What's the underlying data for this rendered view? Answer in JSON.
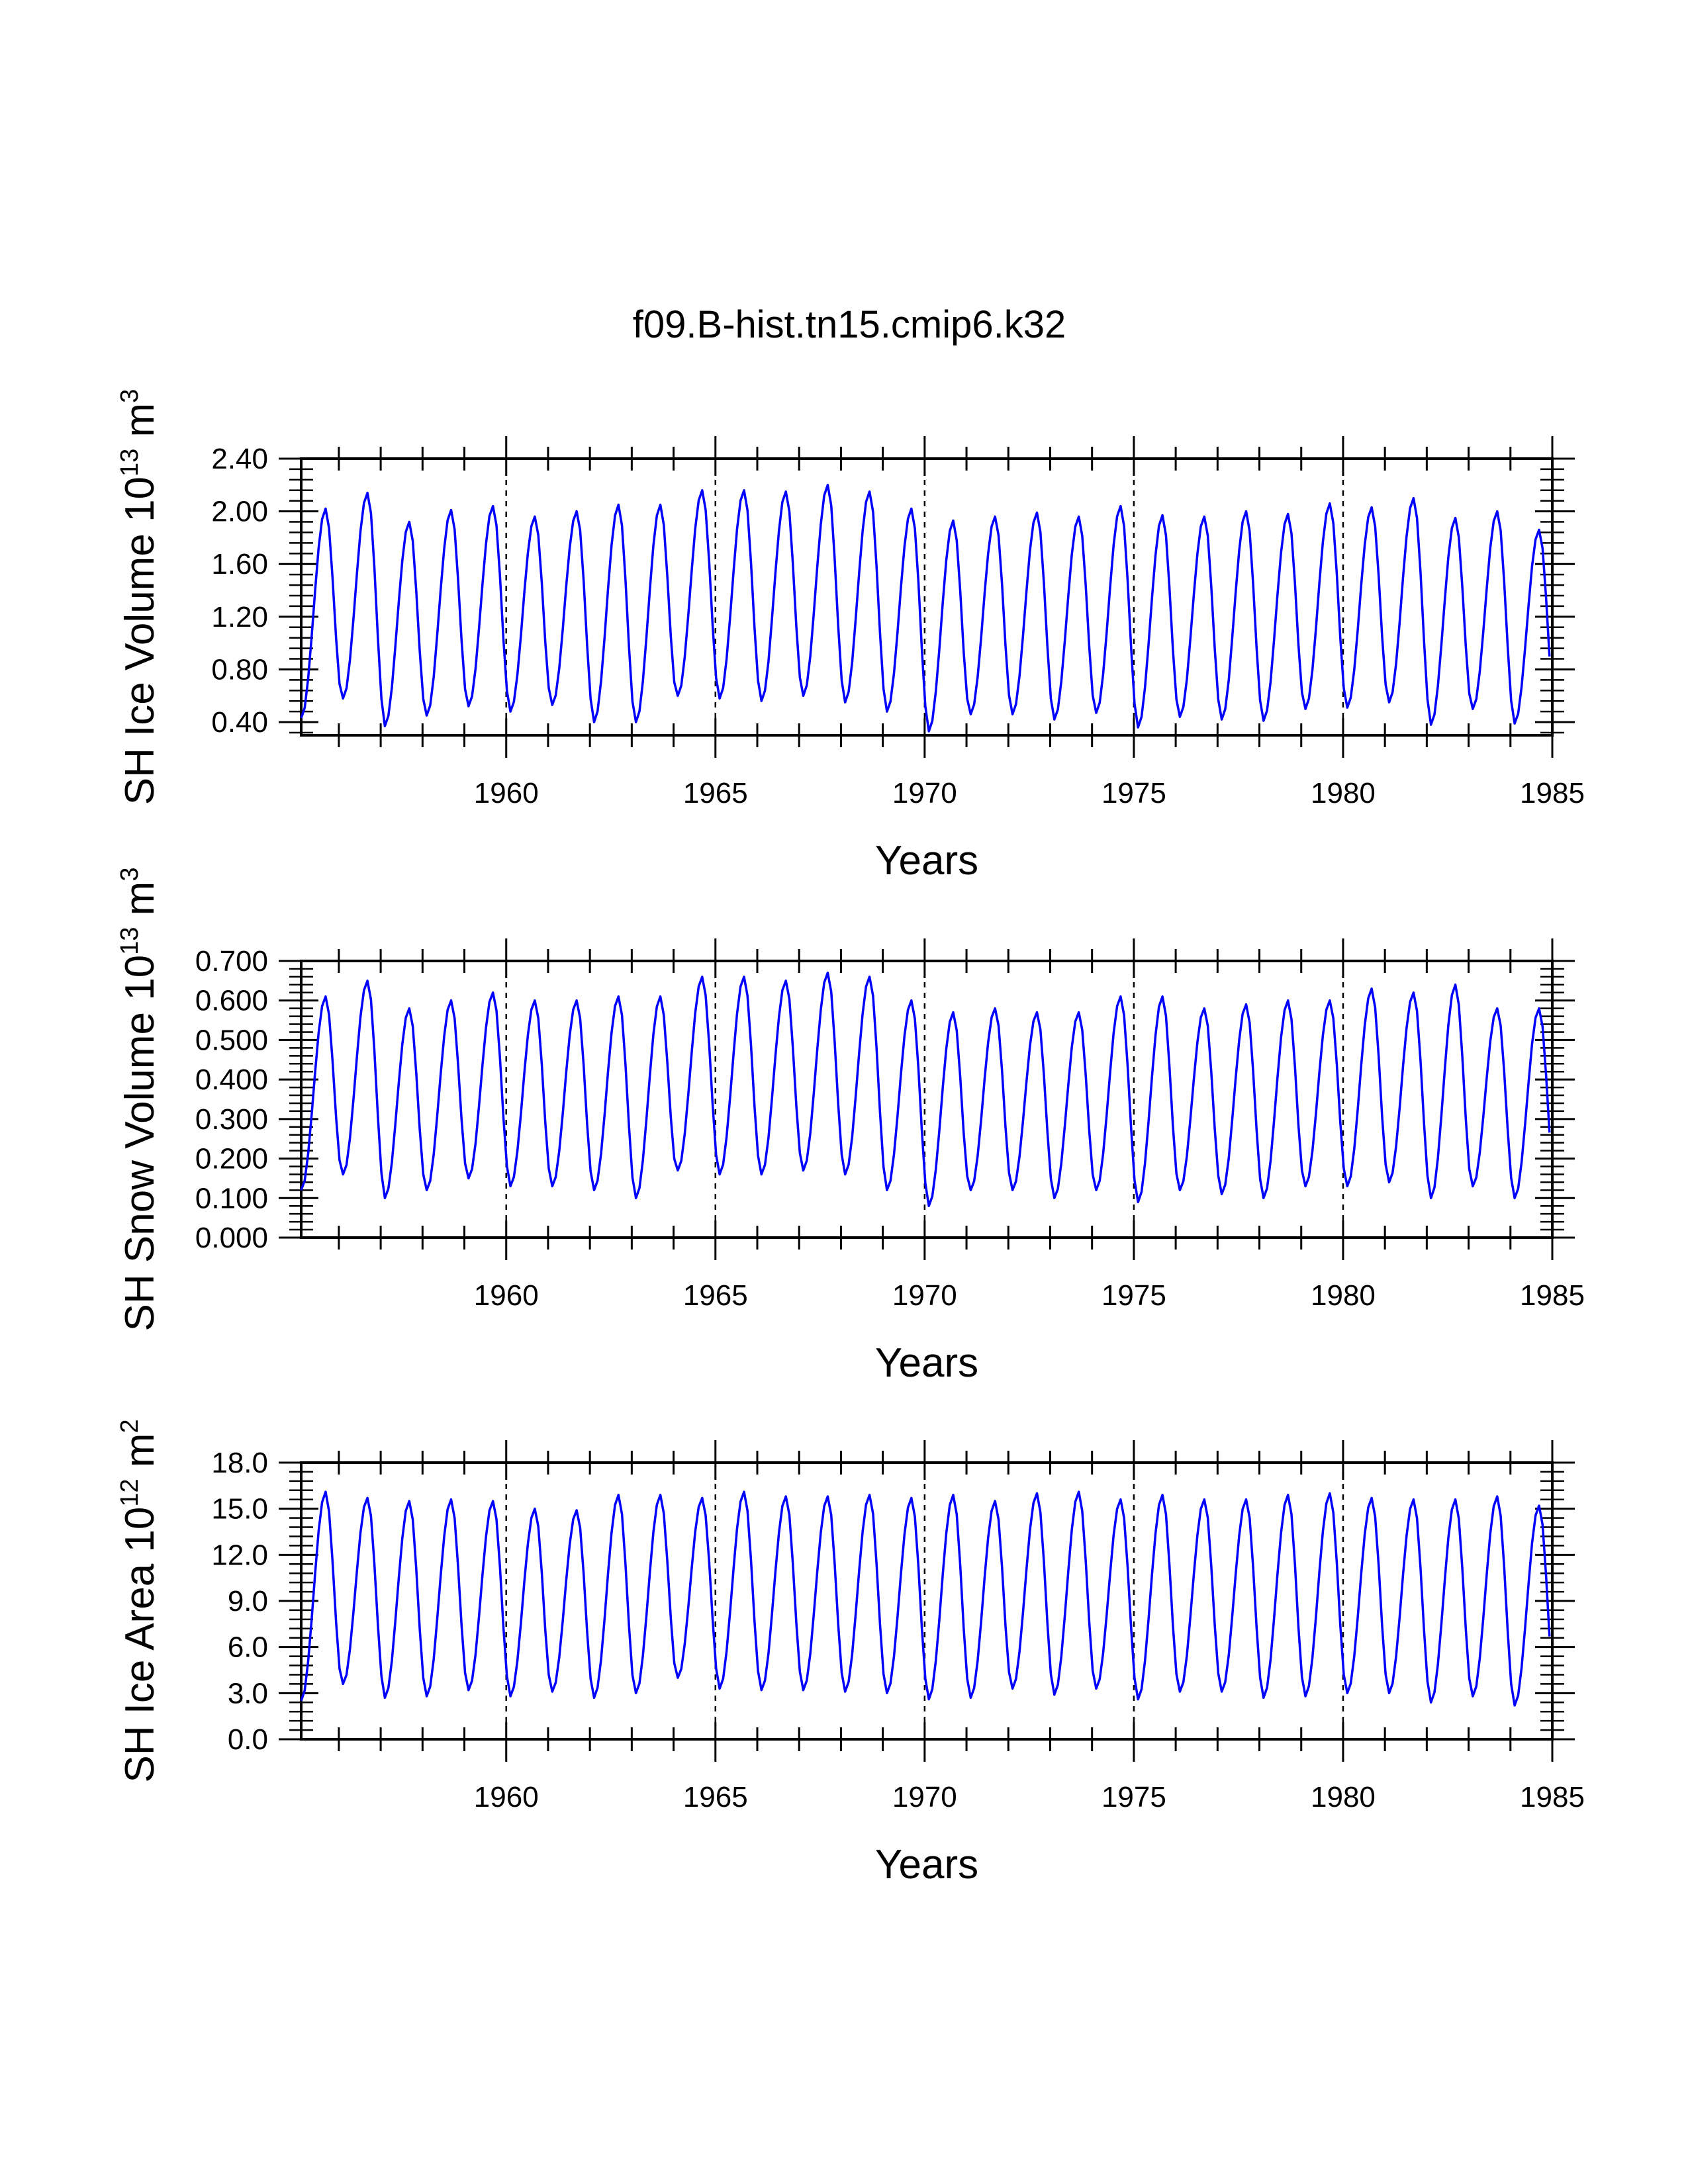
{
  "title": "f09.B-hist.tn15.cmip6.k32",
  "colors": {
    "series": "#0000ff",
    "axis": "#000000",
    "reference_lines": "#000000"
  },
  "chart_data": [
    {
      "type": "line",
      "name": "sh-ice-volume",
      "ylabel": {
        "text": "SH Ice Volume 10",
        "exp": "13",
        "unit": " m",
        "unit_exp": "3"
      },
      "xlabel": "Years",
      "xlim": [
        1955.1,
        1985.0
      ],
      "ylim": [
        0.3,
        2.4
      ],
      "x_ticks": [
        "1960",
        "1965",
        "1970",
        "1975",
        "1980",
        "1985"
      ],
      "y_ticks": [
        "0.40",
        "0.80",
        "1.20",
        "1.60",
        "2.00",
        "2.40"
      ],
      "x_start": 1955.1,
      "months_per_year": 12,
      "reference_lines": [
        1960,
        1965,
        1970,
        1975,
        1980
      ],
      "series": [
        {
          "name": "SH Ice Volume",
          "maxima": [
            2.02,
            2.14,
            1.92,
            2.01,
            2.04,
            1.96,
            2.0,
            2.05,
            2.05,
            2.16,
            2.16,
            2.15,
            2.2,
            2.15,
            2.02,
            1.93,
            1.96,
            1.99,
            1.96,
            2.04,
            1.97,
            1.96,
            2.0,
            1.98,
            2.06,
            2.03,
            2.1,
            1.95,
            2.0,
            1.86
          ],
          "minima": [
            0.43,
            0.58,
            0.37,
            0.45,
            0.52,
            0.48,
            0.53,
            0.4,
            0.4,
            0.6,
            0.58,
            0.56,
            0.6,
            0.55,
            0.48,
            0.33,
            0.46,
            0.46,
            0.42,
            0.47,
            0.36,
            0.44,
            0.42,
            0.41,
            0.5,
            0.51,
            0.55,
            0.38,
            0.5,
            0.39
          ]
        }
      ]
    },
    {
      "type": "line",
      "name": "sh-snow-volume",
      "ylabel": {
        "text": "SH Snow Volume 10",
        "exp": "13",
        "unit": " m",
        "unit_exp": "3"
      },
      "xlabel": "Years",
      "xlim": [
        1955.1,
        1985.0
      ],
      "ylim": [
        0.0,
        0.7
      ],
      "x_ticks": [
        "1960",
        "1965",
        "1970",
        "1975",
        "1980",
        "1985"
      ],
      "y_ticks": [
        "0.000",
        "0.100",
        "0.200",
        "0.300",
        "0.400",
        "0.500",
        "0.600",
        "0.700"
      ],
      "x_start": 1955.1,
      "months_per_year": 12,
      "reference_lines": [
        1960,
        1965,
        1970,
        1975,
        1980
      ],
      "series": [
        {
          "name": "SH Snow Volume",
          "maxima": [
            0.61,
            0.65,
            0.58,
            0.6,
            0.62,
            0.6,
            0.6,
            0.61,
            0.61,
            0.66,
            0.66,
            0.65,
            0.67,
            0.66,
            0.6,
            0.57,
            0.58,
            0.57,
            0.57,
            0.61,
            0.61,
            0.58,
            0.59,
            0.6,
            0.6,
            0.63,
            0.62,
            0.64,
            0.58,
            0.58
          ],
          "minima": [
            0.12,
            0.16,
            0.1,
            0.12,
            0.15,
            0.13,
            0.13,
            0.12,
            0.1,
            0.17,
            0.16,
            0.16,
            0.17,
            0.16,
            0.12,
            0.08,
            0.12,
            0.12,
            0.1,
            0.12,
            0.09,
            0.12,
            0.11,
            0.1,
            0.13,
            0.13,
            0.14,
            0.1,
            0.13,
            0.1
          ]
        }
      ]
    },
    {
      "type": "line",
      "name": "sh-ice-area",
      "ylabel": {
        "text": "SH Ice Area 10",
        "exp": "12",
        "unit": " m",
        "unit_exp": "2"
      },
      "xlabel": "Years",
      "xlim": [
        1955.1,
        1985.0
      ],
      "ylim": [
        0.0,
        18.0
      ],
      "x_ticks": [
        "1960",
        "1965",
        "1970",
        "1975",
        "1980",
        "1985"
      ],
      "y_ticks": [
        "0.0",
        "3.0",
        "6.0",
        "9.0",
        "12.0",
        "15.0",
        "18.0"
      ],
      "x_start": 1955.1,
      "months_per_year": 12,
      "reference_lines": [
        1960,
        1965,
        1970,
        1975,
        1980
      ],
      "series": [
        {
          "name": "SH Ice Area",
          "maxima": [
            16.1,
            15.7,
            15.5,
            15.6,
            15.5,
            15.0,
            14.9,
            15.9,
            15.9,
            15.7,
            16.1,
            15.8,
            15.8,
            15.9,
            15.7,
            15.9,
            15.5,
            16.0,
            16.1,
            15.6,
            15.9,
            15.6,
            15.6,
            15.9,
            16.0,
            15.7,
            15.6,
            15.6,
            15.8,
            15.2
          ],
          "minima": [
            2.5,
            3.6,
            2.7,
            2.8,
            3.2,
            2.8,
            3.1,
            2.7,
            3.0,
            4.0,
            3.3,
            3.2,
            3.2,
            3.1,
            3.0,
            2.6,
            2.7,
            3.3,
            2.9,
            3.3,
            2.6,
            3.1,
            3.1,
            2.7,
            2.8,
            3.0,
            3.0,
            2.4,
            2.8,
            2.2
          ]
        }
      ]
    }
  ]
}
